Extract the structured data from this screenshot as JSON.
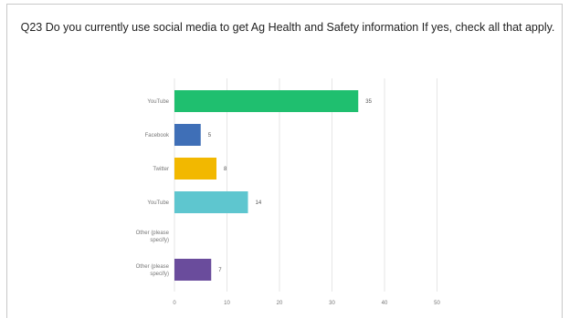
{
  "chart_data": {
    "type": "bar",
    "orientation": "horizontal",
    "title": "Q23 Do you currently use social media to get Ag Health and Safety information  If yes, check all that apply.",
    "categories": [
      "YouTube",
      "Facebook",
      "Twitter",
      "YouTube",
      "Other (please specify)",
      "Other (please specify)"
    ],
    "values": [
      35,
      5,
      8,
      14,
      0,
      7
    ],
    "value_labels": [
      "35",
      "5",
      "8",
      "14",
      "",
      "7"
    ],
    "colors": [
      "#1fbf6f",
      "#3f6fb7",
      "#f2b800",
      "#5ec6cf",
      "#aaaaaa",
      "#6a4c9c"
    ],
    "xlim": [
      0,
      52
    ],
    "x_ticks": [
      0,
      10,
      20,
      30,
      40,
      50
    ],
    "x_tick_labels": [
      "0",
      "10",
      "20",
      "30",
      "40",
      "50"
    ],
    "grid": true,
    "legend": "none"
  }
}
